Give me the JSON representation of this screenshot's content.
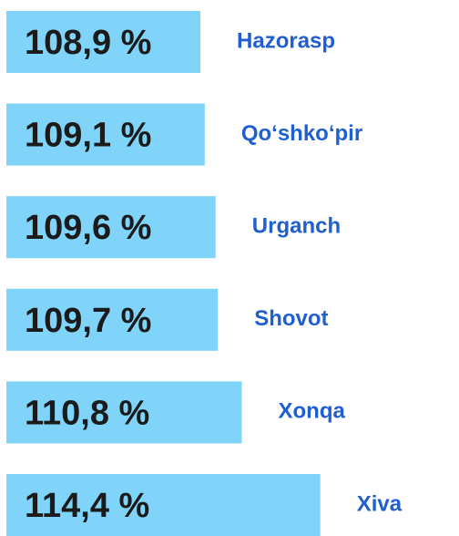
{
  "chart_data": {
    "type": "bar",
    "orientation": "horizontal",
    "categories": [
      "Hazorasp",
      "Qo‘shko‘pir",
      "Urganch",
      "Shovot",
      "Xonqa",
      "Xiva"
    ],
    "values": [
      108.9,
      109.1,
      109.6,
      109.7,
      110.8,
      114.4
    ],
    "value_labels": [
      "108,9 %",
      "109,1 %",
      "109,6 %",
      "109,7 %",
      "110,8 %",
      "114,4 %"
    ],
    "color": "#80d4fa",
    "xlim": [
      100,
      116
    ]
  }
}
